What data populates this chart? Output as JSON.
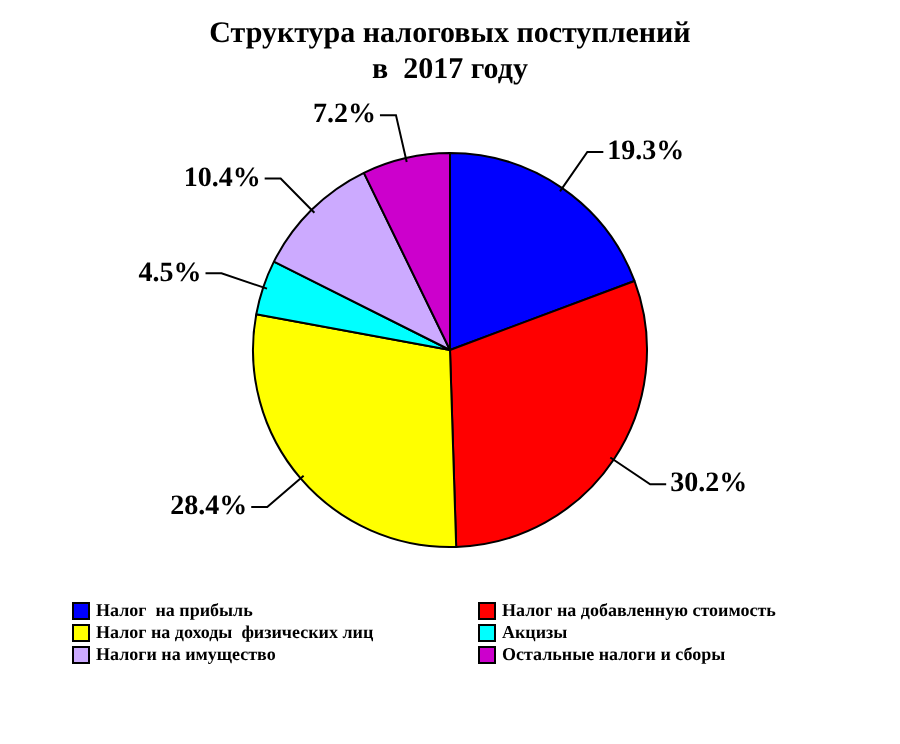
{
  "chart_data": {
    "type": "pie",
    "title": "Структура налоговых поступлений в  2017 году",
    "categories": [
      "Налог  на прибыль",
      "Налог на добавленную стоимость",
      "Налог на доходы  физических лиц",
      "Акцизы",
      "Налоги на имущество",
      "Остальные налоги и сборы"
    ],
    "values": [
      19.3,
      30.2,
      28.4,
      4.5,
      10.4,
      7.2
    ],
    "colors": [
      "#0000ff",
      "#ff0000",
      "#ffff00",
      "#00ffff",
      "#ccaaff",
      "#cc00cc"
    ],
    "value_labels": [
      "19.3%",
      "30.2%",
      "28.4%",
      "4.5%",
      "10.4%",
      "7.2%"
    ],
    "legend": "bottom"
  }
}
